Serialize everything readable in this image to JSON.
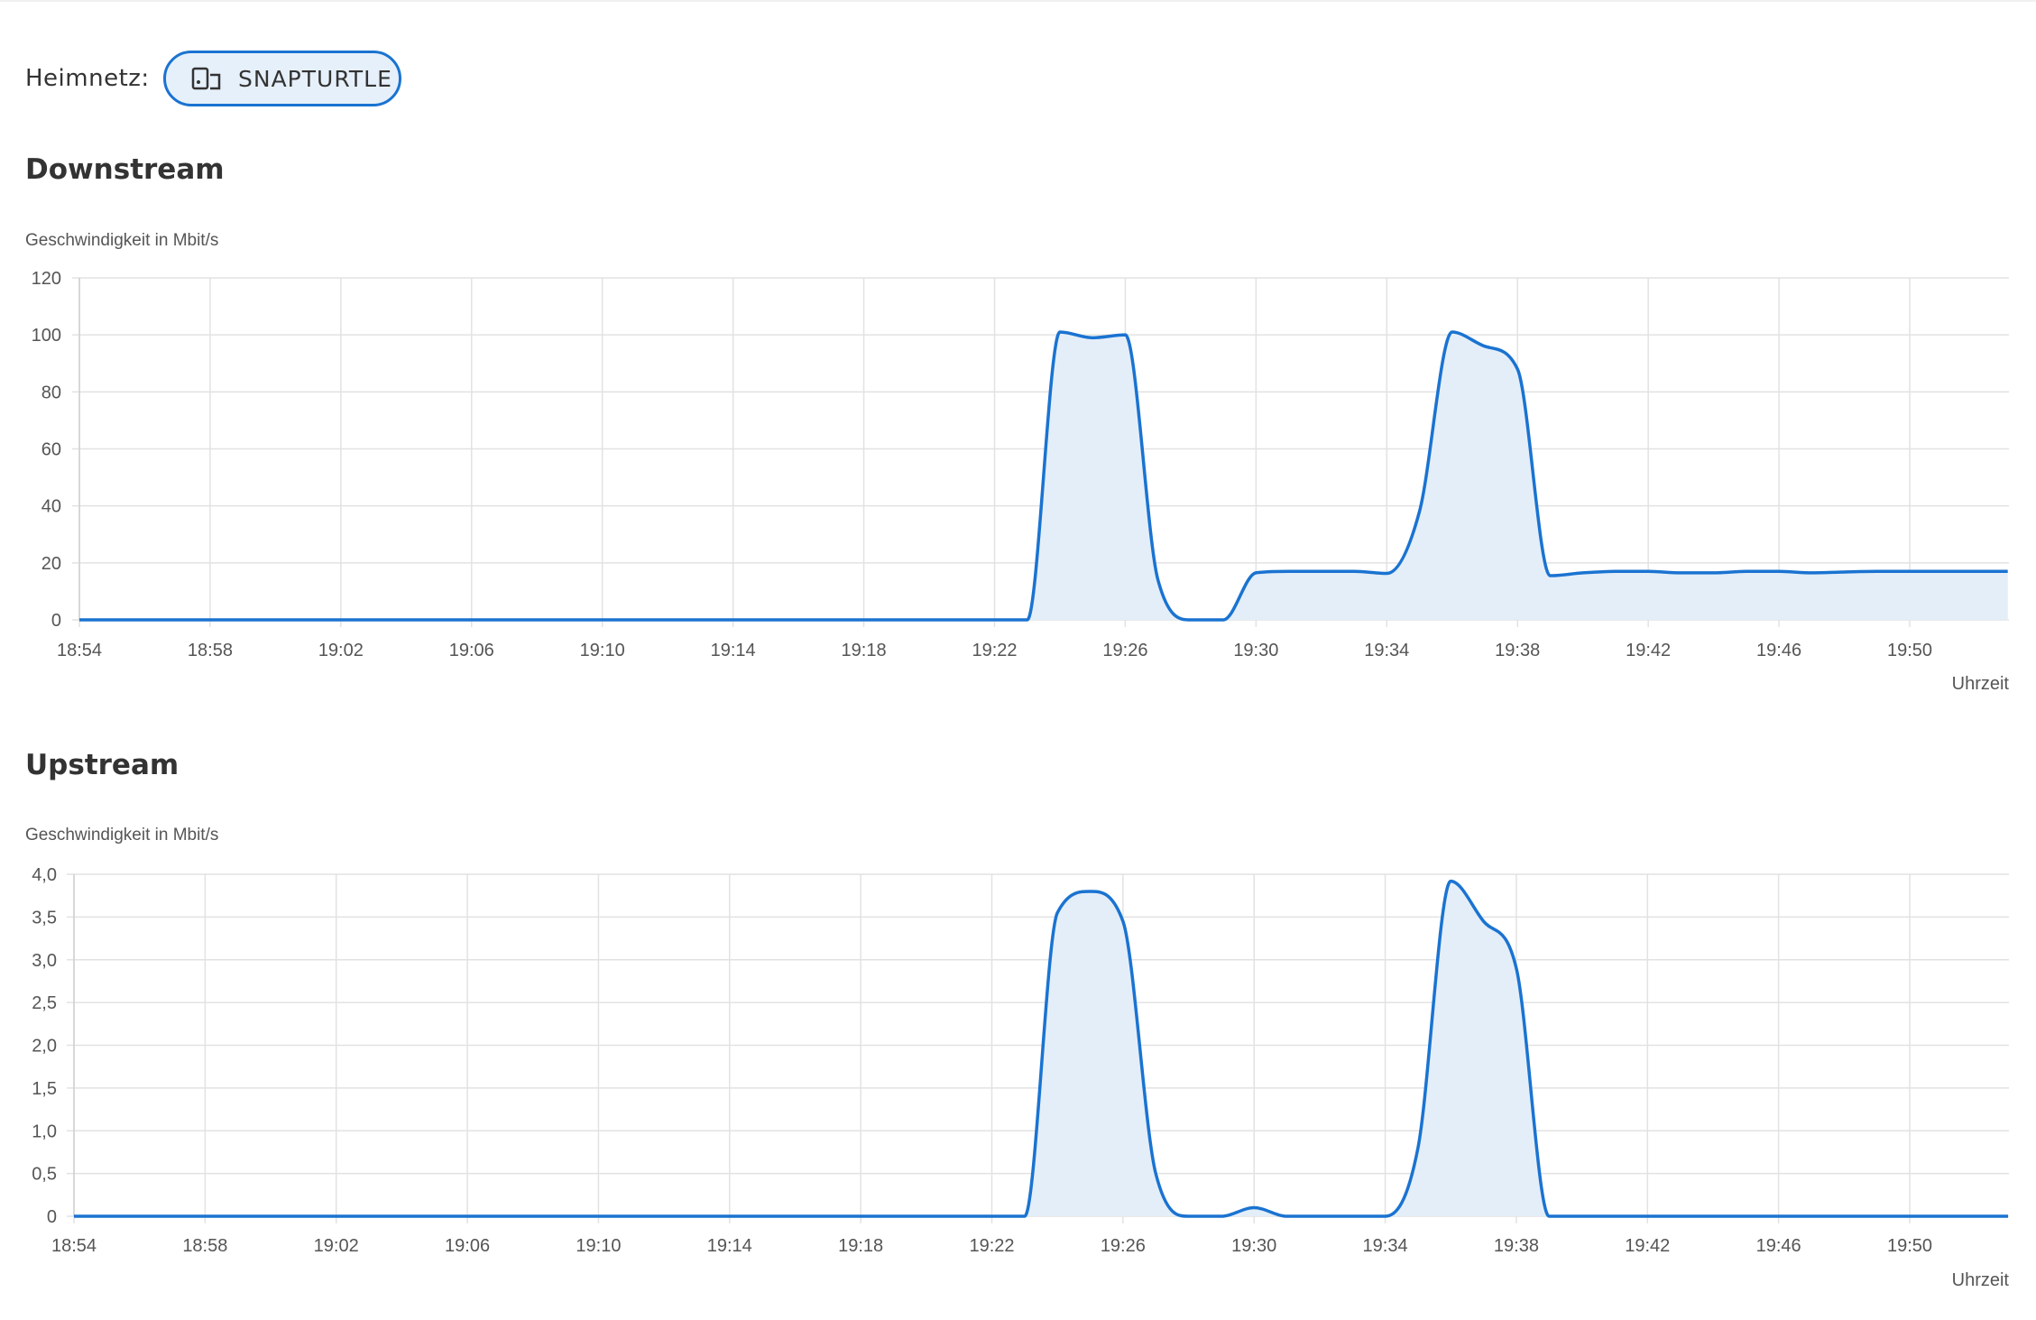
{
  "header": {
    "network_label": "Heimnetz:",
    "network_name": "SNAPTURTLE",
    "network_icon": "devices-icon"
  },
  "accent_color": "#1a73d1",
  "fill_color": "#e4eef8",
  "chart_data": [
    {
      "type": "area",
      "title": "Downstream",
      "ylabel": "Geschwindigkeit in Mbit/s",
      "xlabel": "Uhrzeit",
      "ylim": [
        0,
        120
      ],
      "yticks": [
        "0",
        "20",
        "40",
        "60",
        "80",
        "100",
        "120"
      ],
      "xticks": [
        "18:54",
        "18:58",
        "19:02",
        "19:06",
        "19:10",
        "19:14",
        "19:18",
        "19:22",
        "19:26",
        "19:30",
        "19:34",
        "19:38",
        "19:42",
        "19:46",
        "19:50"
      ],
      "grid": true,
      "x": [
        "18:54",
        "18:55",
        "18:56",
        "18:57",
        "18:58",
        "18:59",
        "19:00",
        "19:01",
        "19:02",
        "19:03",
        "19:04",
        "19:05",
        "19:06",
        "19:07",
        "19:08",
        "19:09",
        "19:10",
        "19:11",
        "19:12",
        "19:13",
        "19:14",
        "19:15",
        "19:16",
        "19:17",
        "19:18",
        "19:19",
        "19:20",
        "19:21",
        "19:22",
        "19:23",
        "19:24",
        "19:25",
        "19:26",
        "19:27",
        "19:28",
        "19:29",
        "19:30",
        "19:31",
        "19:32",
        "19:33",
        "19:34",
        "19:35",
        "19:36",
        "19:37",
        "19:38",
        "19:39",
        "19:40",
        "19:41",
        "19:42",
        "19:43",
        "19:44",
        "19:45",
        "19:46",
        "19:47",
        "19:48",
        "19:49",
        "19:50",
        "19:51",
        "19:52",
        "19:53"
      ],
      "values": [
        0,
        0,
        0,
        0,
        0,
        0,
        0,
        0,
        0,
        0,
        0,
        0,
        0,
        0,
        0,
        0,
        0,
        0,
        0,
        0,
        0,
        0,
        0,
        0,
        0,
        0,
        0,
        0,
        0,
        0,
        101,
        99,
        100,
        14,
        0,
        0,
        16.5,
        17,
        17,
        17,
        16.3,
        38,
        101,
        96,
        88,
        15.5,
        16.5,
        17,
        17,
        16.5,
        16.5,
        17,
        17,
        16.5,
        16.8,
        17,
        17,
        17,
        17,
        17
      ]
    },
    {
      "type": "area",
      "title": "Upstream",
      "ylabel": "Geschwindigkeit in Mbit/s",
      "xlabel": "Uhrzeit",
      "ylim": [
        0,
        4
      ],
      "yticks": [
        "0",
        "0,5",
        "1,0",
        "1,5",
        "2,0",
        "2,5",
        "3,0",
        "3,5",
        "4,0"
      ],
      "xticks": [
        "18:54",
        "18:58",
        "19:02",
        "19:06",
        "19:10",
        "19:14",
        "19:18",
        "19:22",
        "19:26",
        "19:30",
        "19:34",
        "19:38",
        "19:42",
        "19:46",
        "19:50"
      ],
      "grid": true,
      "x": [
        "18:54",
        "18:55",
        "18:56",
        "18:57",
        "18:58",
        "18:59",
        "19:00",
        "19:01",
        "19:02",
        "19:03",
        "19:04",
        "19:05",
        "19:06",
        "19:07",
        "19:08",
        "19:09",
        "19:10",
        "19:11",
        "19:12",
        "19:13",
        "19:14",
        "19:15",
        "19:16",
        "19:17",
        "19:18",
        "19:19",
        "19:20",
        "19:21",
        "19:22",
        "19:23",
        "19:24",
        "19:25",
        "19:26",
        "19:27",
        "19:28",
        "19:29",
        "19:30",
        "19:31",
        "19:32",
        "19:33",
        "19:34",
        "19:35",
        "19:36",
        "19:37",
        "19:38",
        "19:39",
        "19:40",
        "19:41",
        "19:42",
        "19:43",
        "19:44",
        "19:45",
        "19:46",
        "19:47",
        "19:48",
        "19:49",
        "19:50",
        "19:51",
        "19:52",
        "19:53"
      ],
      "values": [
        0,
        0,
        0,
        0,
        0,
        0,
        0,
        0,
        0,
        0,
        0,
        0,
        0,
        0,
        0,
        0,
        0,
        0,
        0,
        0,
        0,
        0,
        0,
        0,
        0,
        0,
        0,
        0,
        0,
        0,
        3.55,
        3.8,
        3.45,
        0.5,
        0,
        0,
        0.1,
        0,
        0,
        0,
        0,
        0.8,
        3.92,
        3.45,
        2.9,
        0,
        0,
        0,
        0,
        0,
        0,
        0,
        0,
        0,
        0,
        0,
        0,
        0,
        0,
        0
      ]
    }
  ]
}
